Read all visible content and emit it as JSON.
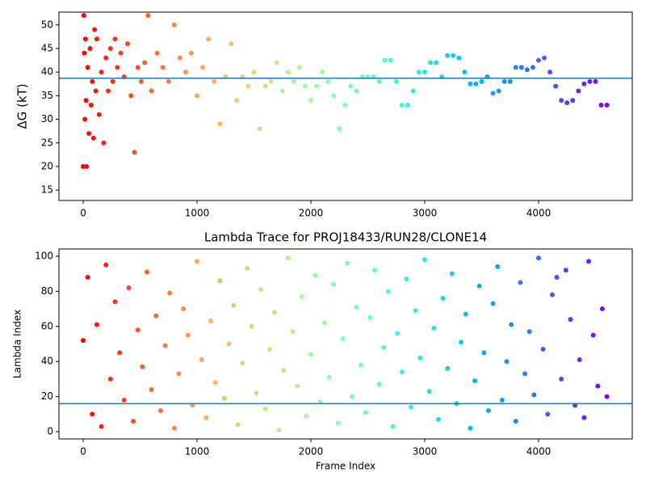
{
  "chart_data": [
    {
      "type": "scatter",
      "ylabel": "ΔG (kT)",
      "colormap": "rainbow",
      "marker_size": 3,
      "hline": 38.7,
      "hline_color": "#1f77b4",
      "xlim": [
        -213,
        4823
      ],
      "ylim": [
        12.8,
        52.7
      ],
      "xticks": [
        0,
        1000,
        2000,
        3000,
        4000
      ],
      "yticks": [
        15,
        20,
        25,
        30,
        35,
        40,
        45,
        50
      ],
      "x": [
        0,
        5,
        10,
        15,
        20,
        25,
        30,
        40,
        50,
        60,
        70,
        80,
        90,
        100,
        110,
        120,
        140,
        160,
        180,
        200,
        220,
        240,
        260,
        280,
        300,
        330,
        360,
        390,
        420,
        450,
        480,
        510,
        540,
        570,
        600,
        650,
        700,
        750,
        800,
        850,
        900,
        950,
        1000,
        1050,
        1100,
        1150,
        1200,
        1250,
        1300,
        1350,
        1400,
        1450,
        1500,
        1550,
        1600,
        1650,
        1700,
        1750,
        1800,
        1850,
        1900,
        1950,
        2000,
        2050,
        2100,
        2150,
        2200,
        2250,
        2300,
        2350,
        2400,
        2450,
        2500,
        2550,
        2600,
        2650,
        2700,
        2750,
        2800,
        2850,
        2900,
        2950,
        3000,
        3050,
        3100,
        3150,
        3200,
        3250,
        3300,
        3350,
        3400,
        3450,
        3500,
        3550,
        3600,
        3650,
        3700,
        3750,
        3800,
        3850,
        3900,
        3950,
        4000,
        4050,
        4100,
        4150,
        4200,
        4250,
        4300,
        4350,
        4400,
        4450,
        4500,
        4550,
        4600
      ],
      "y": [
        20,
        52,
        44,
        30,
        47,
        34,
        20,
        41,
        27,
        45,
        33,
        38,
        26,
        49,
        36,
        47,
        31,
        40,
        25,
        43,
        36,
        45,
        38,
        47,
        41,
        44,
        39,
        46,
        35,
        23,
        41,
        38,
        42,
        52,
        36,
        44,
        41,
        38,
        50,
        43,
        40,
        44,
        35,
        41,
        47,
        38,
        29,
        39,
        46,
        34,
        39,
        37,
        40,
        28,
        37,
        38,
        42,
        36,
        40,
        38,
        41,
        37,
        34,
        37,
        40,
        38,
        35,
        28,
        33,
        37,
        36,
        39,
        39,
        39,
        38,
        42.5,
        42.5,
        38,
        33,
        33,
        36,
        40,
        40,
        42,
        42,
        39,
        43.5,
        43.5,
        43,
        40,
        37.5,
        37.5,
        38,
        39,
        35.5,
        36,
        38,
        38,
        41,
        41,
        40.5,
        41,
        42.5,
        43,
        40,
        37,
        34,
        33.5,
        34,
        36,
        37.5,
        38,
        38,
        33,
        33
      ]
    },
    {
      "type": "scatter",
      "title": "Lambda Trace for PROJ18433/RUN28/CLONE14",
      "xlabel": "Frame Index",
      "ylabel": "Lambda Index",
      "colormap": "rainbow",
      "marker_size": 3,
      "hline": 16,
      "hline_color": "#1f77b4",
      "xlim": [
        -213,
        4823
      ],
      "ylim": [
        -4.1,
        104.1
      ],
      "xticks": [
        0,
        1000,
        2000,
        3000,
        4000
      ],
      "yticks": [
        0,
        20,
        40,
        60,
        80,
        100
      ],
      "x": [
        0,
        40,
        80,
        120,
        160,
        200,
        240,
        280,
        320,
        360,
        400,
        440,
        480,
        520,
        560,
        600,
        640,
        680,
        720,
        760,
        800,
        840,
        880,
        920,
        960,
        1000,
        1040,
        1080,
        1120,
        1160,
        1200,
        1240,
        1280,
        1320,
        1360,
        1400,
        1440,
        1480,
        1520,
        1560,
        1600,
        1640,
        1680,
        1720,
        1760,
        1800,
        1840,
        1880,
        1920,
        1960,
        2000,
        2040,
        2080,
        2120,
        2160,
        2200,
        2240,
        2280,
        2320,
        2360,
        2400,
        2440,
        2480,
        2520,
        2560,
        2600,
        2640,
        2680,
        2720,
        2760,
        2800,
        2840,
        2880,
        2920,
        2960,
        3000,
        3040,
        3080,
        3120,
        3160,
        3200,
        3240,
        3280,
        3320,
        3360,
        3400,
        3440,
        3480,
        3520,
        3560,
        3600,
        3640,
        3680,
        3720,
        3760,
        3800,
        3840,
        3880,
        3920,
        3960,
        4000,
        4040,
        4080,
        4120,
        4160,
        4200,
        4240,
        4280,
        4320,
        4360,
        4400,
        4440,
        4480,
        4520,
        4560,
        4600
      ],
      "y": [
        52,
        88,
        10,
        61,
        3,
        95,
        30,
        74,
        45,
        18,
        82,
        6,
        58,
        37,
        91,
        24,
        66,
        12,
        49,
        79,
        2,
        33,
        70,
        55,
        15,
        97,
        41,
        8,
        63,
        28,
        86,
        19,
        50,
        72,
        4,
        39,
        93,
        60,
        22,
        81,
        13,
        47,
        68,
        1,
        35,
        99,
        57,
        26,
        77,
        9,
        44,
        89,
        17,
        62,
        31,
        84,
        5,
        53,
        96,
        20,
        71,
        38,
        11,
        65,
        92,
        27,
        48,
        80,
        3,
        56,
        34,
        87,
        14,
        69,
        42,
        98,
        23,
        59,
        7,
        76,
        36,
        90,
        16,
        51,
        67,
        2,
        29,
        83,
        45,
        12,
        73,
        94,
        18,
        40,
        61,
        6,
        85,
        33,
        57,
        21,
        99,
        47,
        10,
        78,
        88,
        30,
        92,
        64,
        15,
        41,
        8,
        97,
        55,
        26,
        70,
        20
      ]
    }
  ]
}
